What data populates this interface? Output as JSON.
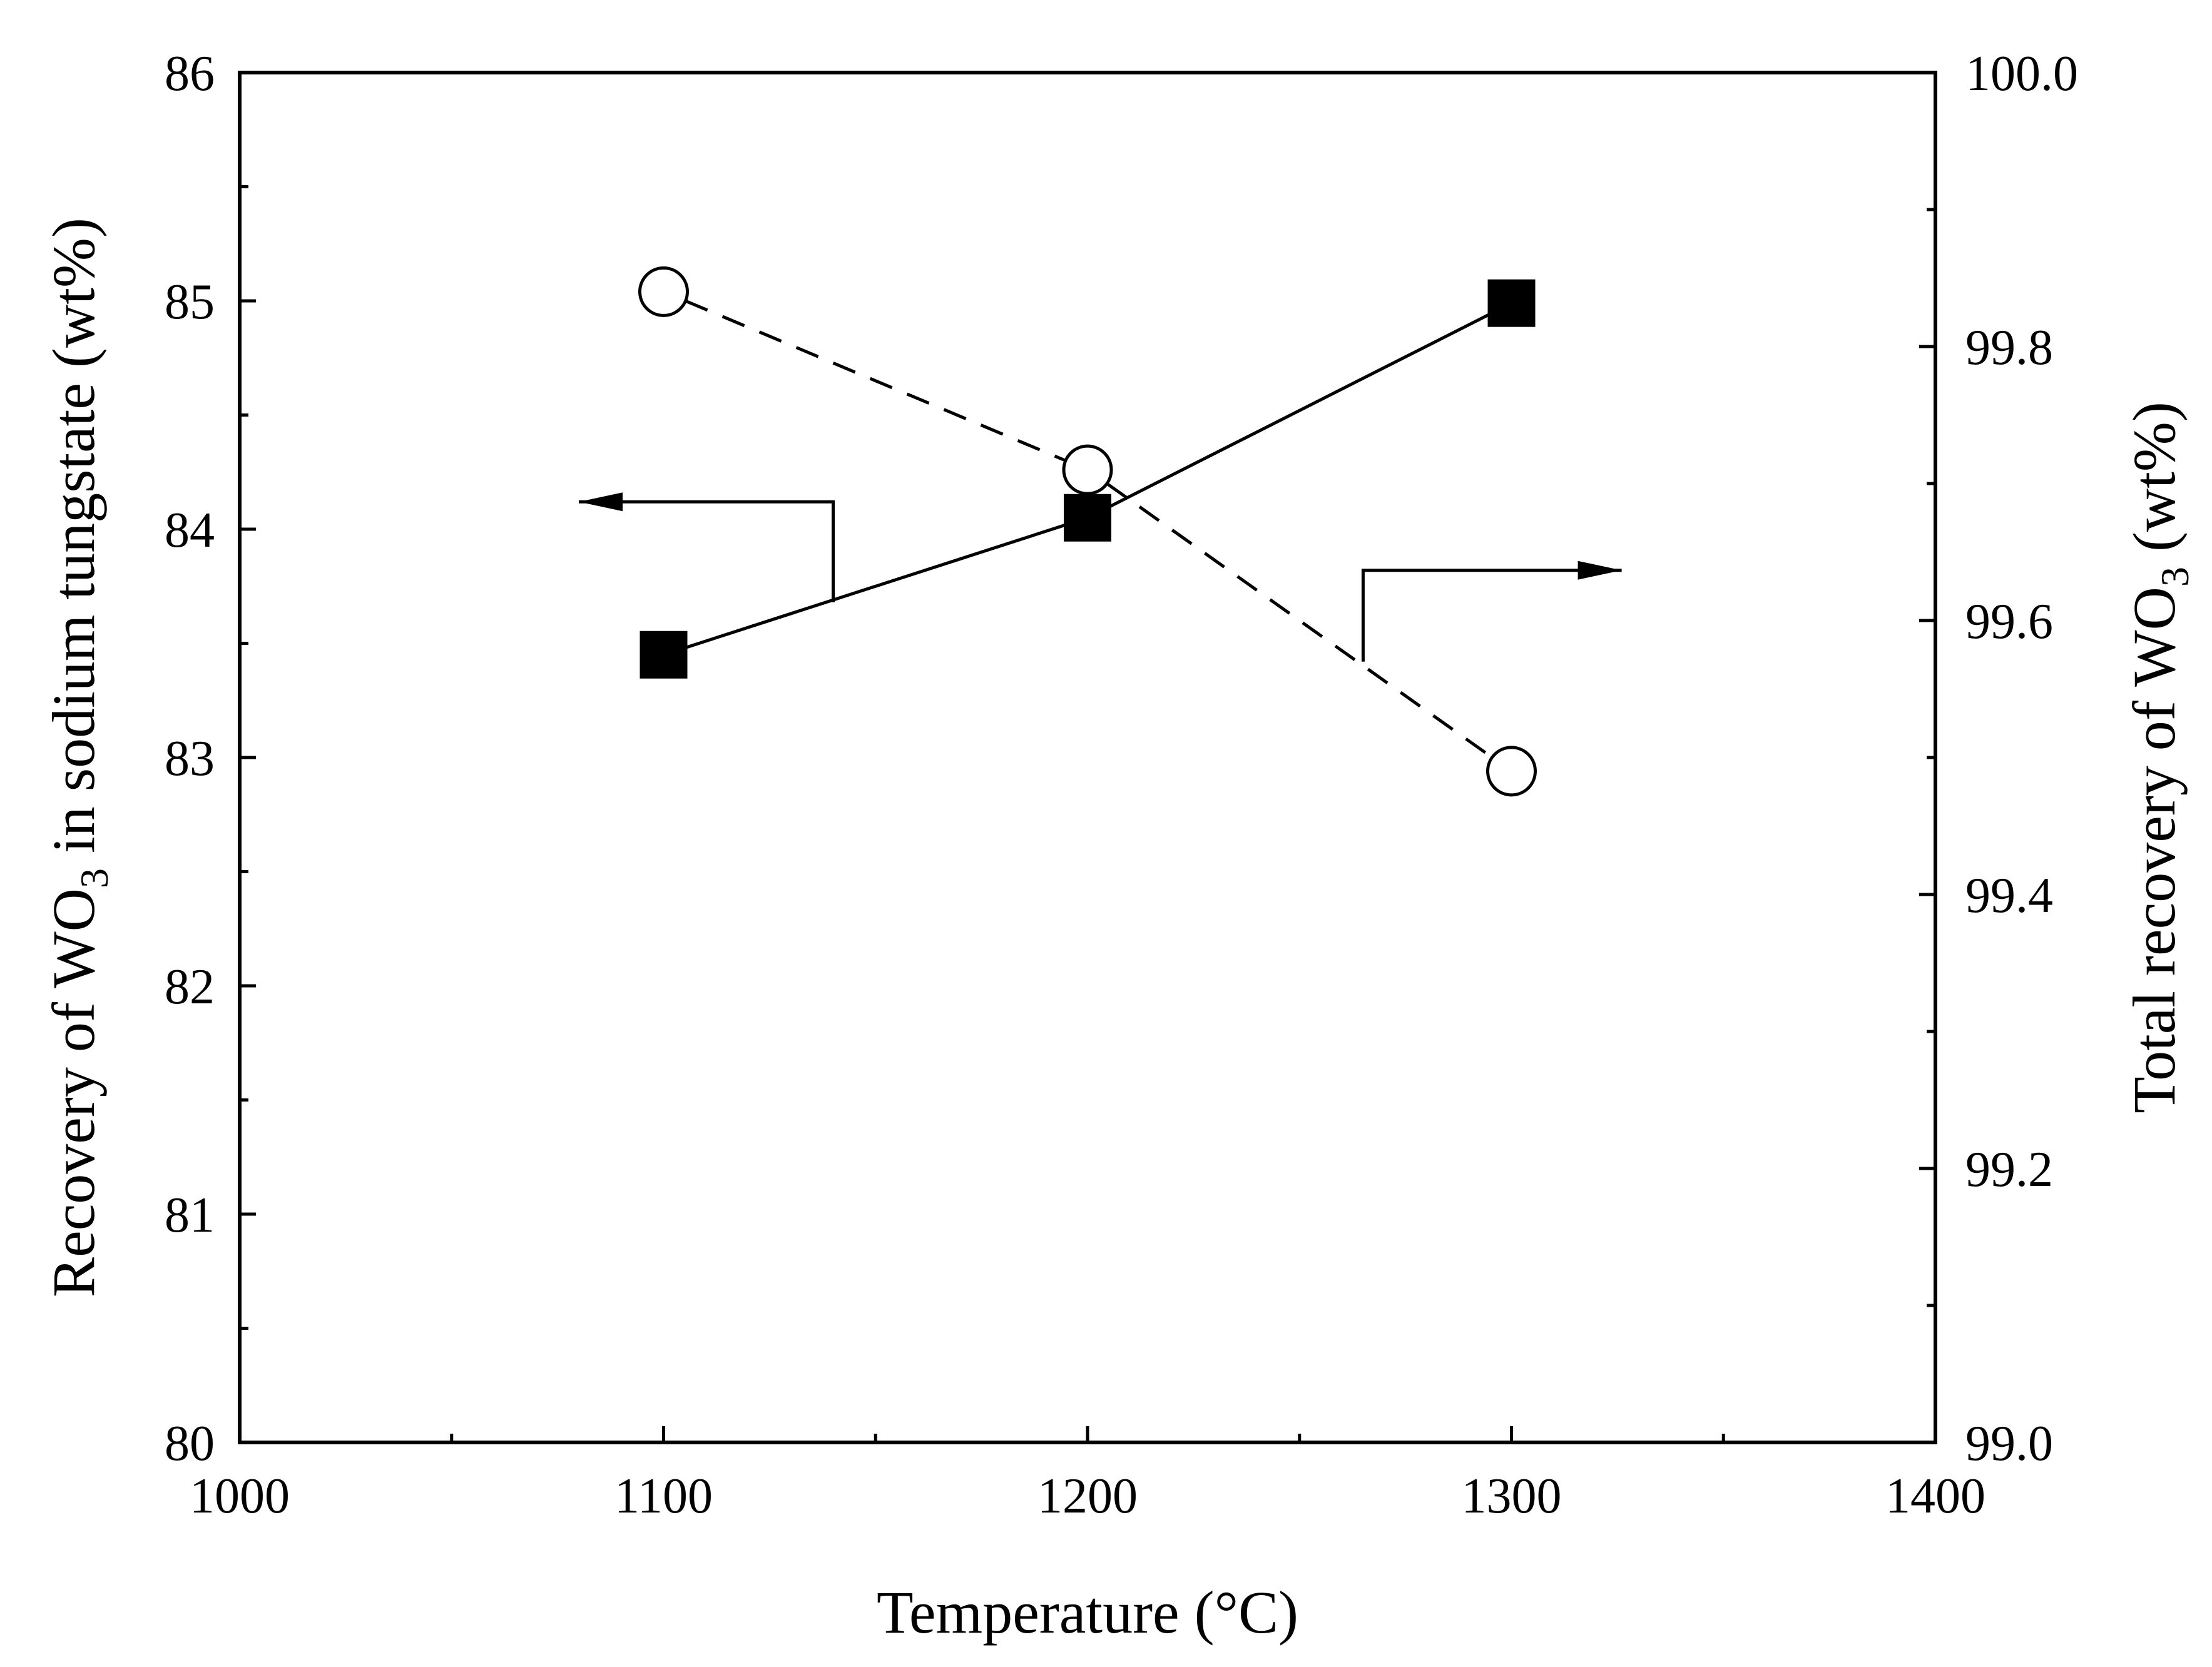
{
  "chart_data": {
    "type": "line",
    "xlabel": "Temperature (°C)",
    "ylabel_left": {
      "prefix": "Recovery of WO",
      "subscript": "3",
      "suffix": " in sodium tungstate (wt%)"
    },
    "ylabel_right": {
      "prefix": "Total recovery of WO",
      "subscript": "3",
      "suffix": " (wt%)"
    },
    "xlim": [
      1000,
      1400
    ],
    "ylim_left": [
      80,
      86
    ],
    "ylim_right": [
      99.0,
      100.0
    ],
    "x_ticks": [
      "1000",
      "1100",
      "1200",
      "1300",
      "1400"
    ],
    "y_left_ticks": [
      "80",
      "81",
      "82",
      "83",
      "84",
      "85",
      "86"
    ],
    "y_right_ticks": [
      "99.0",
      "99.2",
      "99.4",
      "99.6",
      "99.8",
      "100.0"
    ],
    "grid": false,
    "series": [
      {
        "axis": "left",
        "marker": "filled-square",
        "line_style": "solid",
        "x": [
          1100,
          1200,
          1300
        ],
        "y": [
          83.45,
          84.05,
          84.99
        ]
      },
      {
        "axis": "right",
        "marker": "open-circle",
        "line_style": "dashed",
        "x": [
          1100,
          1200,
          1300
        ],
        "y": [
          99.84,
          99.71,
          99.49
        ]
      }
    ],
    "annotations": [
      {
        "type": "arrow",
        "points_to": "left-axis",
        "x": [
          1140,
          1140,
          1080
        ],
        "y": [
          83.68,
          84.12,
          84.12
        ]
      },
      {
        "type": "arrow",
        "points_to": "right-axis",
        "x": [
          1265,
          1265,
          1326
        ],
        "y": [
          83.42,
          83.82,
          83.82
        ]
      }
    ],
    "colors": {
      "line": "#000000",
      "background": "#ffffff"
    }
  }
}
